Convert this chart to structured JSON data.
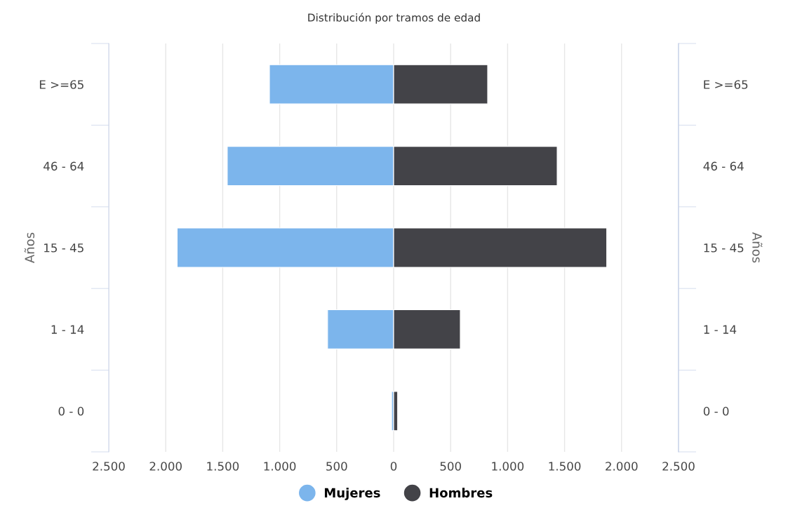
{
  "chart_data": {
    "type": "bar",
    "title": "Distribución por tramos de edad",
    "orientation": "horizontal",
    "stacked": true,
    "categories": [
      "E >=65",
      "46 - 64",
      "15 - 45",
      "1 - 14",
      "0 - 0"
    ],
    "series": [
      {
        "name": "Mujeres",
        "color": "#7cb5ec",
        "values": [
          -1090,
          -1460,
          -1900,
          -580,
          -18
        ]
      },
      {
        "name": "Hombres",
        "color": "#434348",
        "values": [
          825,
          1435,
          1870,
          585,
          35
        ]
      }
    ],
    "ylabel": "Años",
    "y2label": "Años",
    "xlim": [
      -2500,
      2500
    ],
    "xticks": [
      {
        "value": -2500,
        "label": "2.500"
      },
      {
        "value": -2000,
        "label": "2.000"
      },
      {
        "value": -1500,
        "label": "1.500"
      },
      {
        "value": -1000,
        "label": "1.000"
      },
      {
        "value": -500,
        "label": "500"
      },
      0,
      500,
      {
        "value": 1000,
        "label": "1.000"
      },
      {
        "value": 1500,
        "label": "1.500"
      },
      {
        "value": 2000,
        "label": "2.000"
      },
      {
        "value": 2500,
        "label": "2.500"
      }
    ],
    "grid": "x",
    "legend": "bottom",
    "marker": "circle"
  }
}
